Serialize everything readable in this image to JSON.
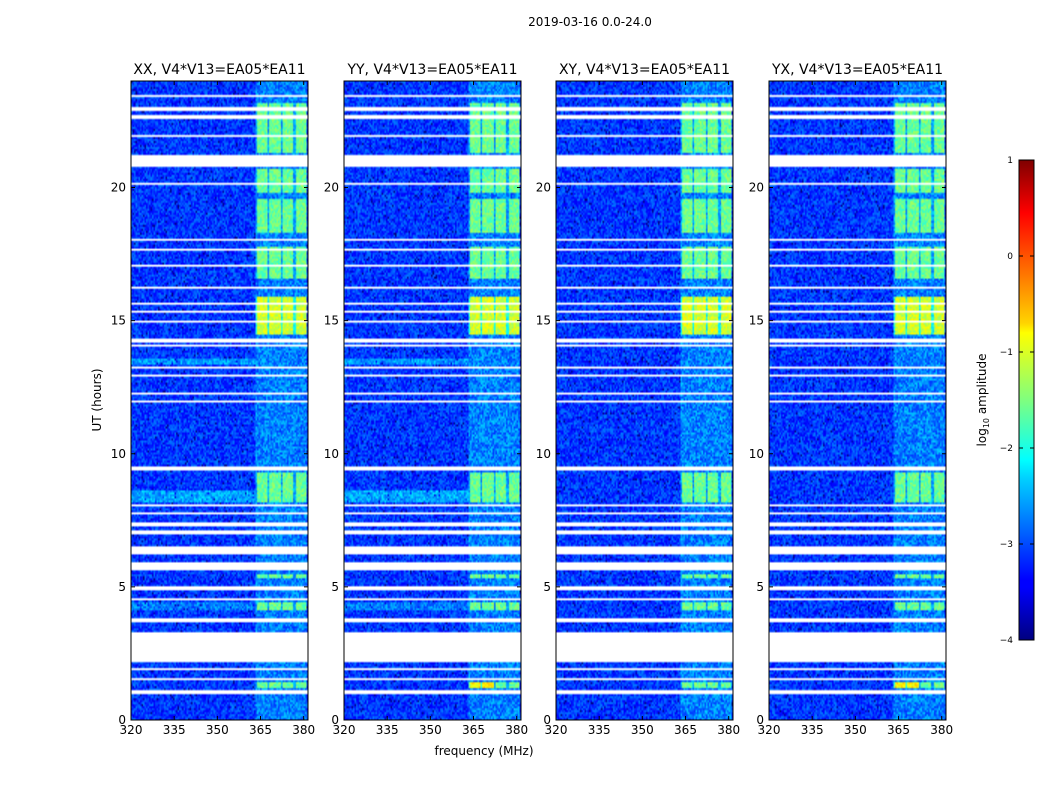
{
  "suptitle": "2019-03-16 0.0-24.0",
  "chart_data": {
    "type": "heatmap",
    "panels": [
      {
        "title": "XX, V4*V13=EA05*EA11",
        "pol": "XX"
      },
      {
        "title": "YY, V4*V13=EA05*EA11",
        "pol": "YY"
      },
      {
        "title": "XY, V4*V13=EA05*EA11",
        "pol": "XY"
      },
      {
        "title": "YX, V4*V13=EA05*EA11",
        "pol": "YX"
      }
    ],
    "xlabel": "frequency (MHz)",
    "ylabel": "UT (hours)",
    "xlim": [
      320,
      381.5
    ],
    "ylim": [
      0,
      24
    ],
    "xticks": [
      320,
      335,
      350,
      365,
      380
    ],
    "xtick_labels": [
      "320",
      "335",
      "350",
      "365",
      "380"
    ],
    "yticks": [
      0,
      5,
      10,
      15,
      20
    ],
    "ytick_labels": [
      "0",
      "5",
      "10",
      "15",
      "20"
    ],
    "colorbar": {
      "label_prefix": "log",
      "label_sub": "10",
      "label_suffix": " amplitude",
      "range": [
        -4,
        1
      ],
      "ticks": [
        1,
        0,
        -1,
        -2,
        -3,
        -4
      ],
      "tick_labels": [
        "1",
        "0",
        "−1",
        "−2",
        "−3",
        "−4"
      ],
      "colormap": "jet"
    },
    "blanked_hours": [
      [
        0.95,
        1.1
      ],
      [
        1.5,
        1.6
      ],
      [
        1.85,
        1.95
      ],
      [
        2.2,
        3.3
      ],
      [
        3.5,
        3.55
      ],
      [
        3.7,
        3.8
      ],
      [
        4.5,
        4.6
      ],
      [
        4.9,
        5.0
      ],
      [
        5.65,
        5.95
      ],
      [
        6.2,
        6.5
      ],
      [
        7.0,
        7.1
      ],
      [
        7.3,
        7.4
      ],
      [
        7.7,
        7.8
      ],
      [
        8.0,
        8.1
      ],
      [
        9.4,
        9.5
      ],
      [
        11.9,
        12.0
      ],
      [
        12.2,
        12.3
      ],
      [
        12.9,
        13.0
      ],
      [
        13.2,
        13.3
      ],
      [
        14.0,
        14.1
      ],
      [
        14.2,
        14.3
      ],
      [
        14.9,
        15.0
      ],
      [
        15.3,
        15.4
      ],
      [
        15.6,
        15.7
      ],
      [
        16.2,
        16.3
      ],
      [
        17.0,
        17.1
      ],
      [
        17.6,
        17.7
      ],
      [
        18.0,
        18.1
      ],
      [
        20.1,
        20.2
      ],
      [
        20.8,
        21.2
      ],
      [
        21.9,
        22.0
      ],
      [
        22.6,
        22.7
      ],
      [
        22.9,
        23.0
      ],
      [
        23.4,
        23.5
      ]
    ],
    "bright_bands_hours": [
      [
        1.2,
        1.45
      ],
      [
        4.1,
        4.4
      ],
      [
        5.3,
        5.45
      ],
      [
        8.2,
        9.3
      ],
      [
        14.5,
        15.9
      ],
      [
        16.6,
        17.8
      ],
      [
        18.3,
        19.6
      ],
      [
        19.8,
        20.7
      ],
      [
        21.3,
        23.2
      ]
    ],
    "bright_freq_mhz": [
      363.0,
      381.0
    ],
    "background_log_amplitude": -3.1
  }
}
